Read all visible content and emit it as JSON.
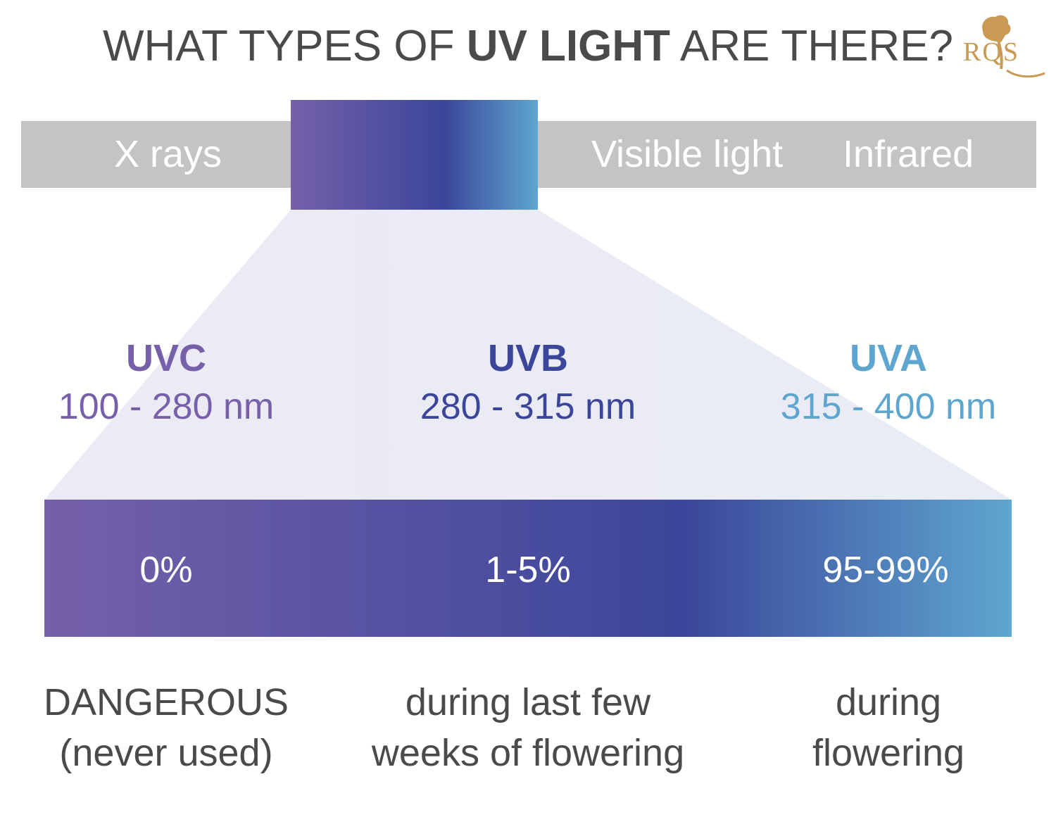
{
  "title": {
    "prefix": "WHAT TYPES OF ",
    "emphasis": "UV LIGHT",
    "suffix": " ARE THERE?"
  },
  "logo": {
    "text": "RQS",
    "color": "#c99a54"
  },
  "spectrum": {
    "bands": [
      "X rays",
      "Visible light",
      "Infrared"
    ],
    "bar_color": "#c4c4c4"
  },
  "uv_types": [
    {
      "name": "UVC",
      "range": "100 - 280 nm",
      "share": "0%",
      "use_line1": "DANGEROUS",
      "use_line2": "(never used)",
      "color": "#7560a9"
    },
    {
      "name": "UVB",
      "range": "280 - 315 nm",
      "share": "1-5%",
      "use_line1": "during last few",
      "use_line2": "weeks of flowering",
      "color": "#3b469a"
    },
    {
      "name": "UVA",
      "range": "315 - 400 nm",
      "share": "95-99%",
      "use_line1": "during",
      "use_line2": "flowering",
      "color": "#5ea6cf"
    }
  ]
}
